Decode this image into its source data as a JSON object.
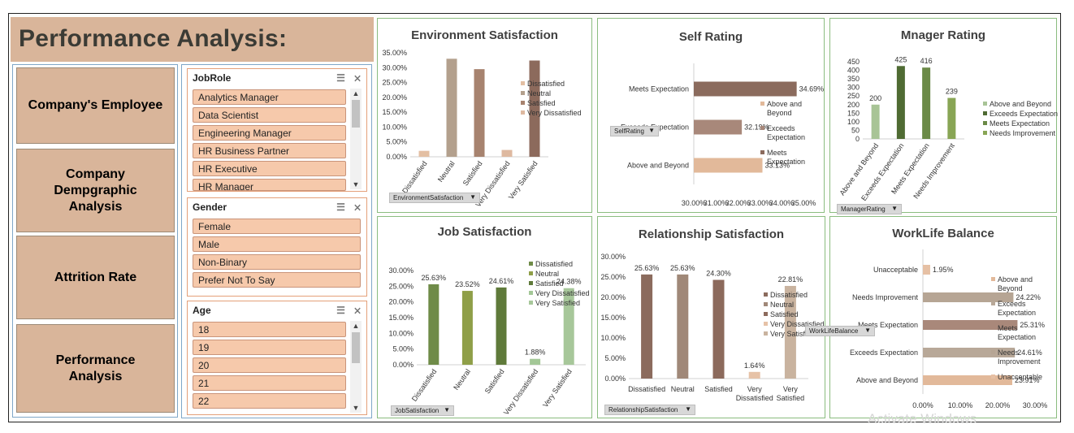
{
  "title": "Performance Analysis:",
  "nav": [
    {
      "label": "Company's Employee"
    },
    {
      "label": "Company Dempgraphic Analysis"
    },
    {
      "label": "Attrition Rate"
    },
    {
      "label": "Performance Analysis"
    }
  ],
  "slicers": {
    "jobrole": {
      "header": "JobRole",
      "items": [
        "Analytics Manager",
        "Data Scientist",
        "Engineering Manager",
        "HR Business Partner",
        "HR Executive",
        "HR Manager"
      ]
    },
    "gender": {
      "header": "Gender",
      "items": [
        "Female",
        "Male",
        "Non-Binary",
        "Prefer Not To Say"
      ]
    },
    "age": {
      "header": "Age",
      "items": [
        "18",
        "19",
        "20",
        "21",
        "22"
      ]
    }
  },
  "icons": {
    "multiselect": "multi-select-icon",
    "clear": "clear-filter-icon",
    "dropdown": "dropdown-arrow-icon"
  },
  "colors": {
    "accent": "#d9b59a",
    "slicer_item": "#f6c9ab",
    "card_border": "#8bbd80"
  },
  "watermark": "Activate Windows",
  "chart_data": [
    {
      "id": "env",
      "type": "bar",
      "title": "Environment Satisfaction",
      "field_button": "EnvironmentSatisfaction",
      "categories": [
        "Dissatisfied",
        "Neutral",
        "Satisfied",
        "Very Dissatisfied",
        "Very Satisfied"
      ],
      "values": [
        2.0,
        33.0,
        29.5,
        2.3,
        32.4
      ],
      "colors": [
        "#e3bfa3",
        "#b3a08d",
        "#a7836f",
        "#deb9a0",
        "#8c6a5c"
      ],
      "yticks": [
        "0.00%",
        "5.00%",
        "10.00%",
        "15.00%",
        "20.00%",
        "25.00%",
        "30.00%",
        "35.00%"
      ],
      "ylim": [
        0,
        35
      ],
      "legend": [
        "Dissatisfied",
        "Neutral",
        "Satisfied",
        "Very Dissatisfied"
      ],
      "legend_colors": [
        "#e3bfa3",
        "#b3a08d",
        "#a7836f",
        "#deb9a0"
      ]
    },
    {
      "id": "self",
      "type": "bar",
      "orientation": "horizontal",
      "title": "Self Rating",
      "field_button": "SelfRating",
      "categories": [
        "Meets Expectation",
        "Exceeds Expectation",
        "Above and Beyond"
      ],
      "values": [
        34.69,
        32.19,
        33.13
      ],
      "labels": [
        "34.69%",
        "32.19%",
        "33.13%"
      ],
      "colors": [
        "#8b6b5d",
        "#a8887a",
        "#e2b99a"
      ],
      "xticks": [
        "30.00%",
        "31.00%",
        "32.00%",
        "33.00%",
        "34.00%",
        "35.00%"
      ],
      "xlim": [
        30,
        35
      ],
      "legend": [
        "Above and Beyond",
        "Exceeds Expectation",
        "Meets Expectation"
      ],
      "legend_colors": [
        "#e2b99a",
        "#a8887a",
        "#8b6b5d"
      ]
    },
    {
      "id": "mgr",
      "type": "bar",
      "title": "Mnager Rating",
      "field_button": "ManagerRating",
      "categories": [
        "Above and Beyond",
        "Exceeds Expectation",
        "Meets Expectation",
        "Needs Improvement"
      ],
      "values": [
        200,
        425,
        416,
        239
      ],
      "labels": [
        "200",
        "425",
        "416",
        "239"
      ],
      "colors": [
        "#a8c496",
        "#4f6b33",
        "#6b8a47",
        "#88a555"
      ],
      "yticks": [
        "0",
        "50",
        "100",
        "150",
        "200",
        "250",
        "300",
        "350",
        "400",
        "450"
      ],
      "ylim": [
        0,
        450
      ],
      "legend": [
        "Above and Beyond",
        "Exceeds Expectation",
        "Meets Expectation",
        "Needs Improvement"
      ],
      "legend_colors": [
        "#a8c496",
        "#4f6b33",
        "#6b8a47",
        "#88a555"
      ]
    },
    {
      "id": "job",
      "type": "bar",
      "title": "Job Satisfaction",
      "field_button": "JobSatisfaction",
      "categories": [
        "Dissatisfied",
        "Neutral",
        "Satisfied",
        "Very Dissatisfied",
        "Very Satisfied"
      ],
      "values": [
        25.63,
        23.52,
        24.61,
        1.88,
        24.38
      ],
      "labels": [
        "25.63%",
        "23.52%",
        "24.61%",
        "1.88%",
        "24.38%"
      ],
      "colors": [
        "#6f8b48",
        "#8f9f48",
        "#5f7a3a",
        "#a3c796",
        "#a7c79a"
      ],
      "yticks": [
        "0.00%",
        "5.00%",
        "10.00%",
        "15.00%",
        "20.00%",
        "25.00%",
        "30.00%"
      ],
      "ylim": [
        0,
        30
      ],
      "legend": [
        "Dissatisfied",
        "Neutral",
        "Satisfied",
        "Very Dissatisfied",
        "Very Satisfied"
      ],
      "legend_colors": [
        "#6f8b48",
        "#8f9f48",
        "#5f7a3a",
        "#a3c796",
        "#a7c79a"
      ]
    },
    {
      "id": "rel",
      "type": "bar",
      "title": "Relationship Satisfaction",
      "field_button": "RelationshipSatisfaction",
      "categories": [
        "Dissatisfied",
        "Neutral",
        "Satisfied",
        "Very Dissatisfied",
        "Very Satisfied"
      ],
      "xlabels": [
        [
          "Dissatisfied"
        ],
        [
          "Neutral"
        ],
        [
          "Satisfied"
        ],
        [
          "Very",
          "Dissatisfied"
        ],
        [
          "Very",
          "Satisfied"
        ]
      ],
      "values": [
        25.63,
        25.63,
        24.3,
        1.64,
        22.81
      ],
      "labels": [
        "25.63%",
        "25.63%",
        "24.30%",
        "1.64%",
        "22.81%"
      ],
      "colors": [
        "#8b6b5d",
        "#a08878",
        "#8c6a5c",
        "#e6c2a7",
        "#c9b39f"
      ],
      "yticks": [
        "0.00%",
        "5.00%",
        "10.00%",
        "15.00%",
        "20.00%",
        "25.00%",
        "30.00%"
      ],
      "ylim": [
        0,
        30
      ],
      "legend": [
        "Dissatisfied",
        "Neutral",
        "Satisfied",
        "Very Dissatisfied",
        "Very Satisfied"
      ],
      "legend_colors": [
        "#8b6b5d",
        "#a08878",
        "#8c6a5c",
        "#e6c2a7",
        "#c9b39f"
      ]
    },
    {
      "id": "wlb",
      "type": "bar",
      "orientation": "horizontal",
      "title": "WorkLife Balance",
      "field_button": "WorkLifeBalance",
      "categories": [
        "Unacceptable",
        "Needs Improvement",
        "Meets Expectation",
        "Exceeds Expectation",
        "Above and Beyond"
      ],
      "values": [
        1.95,
        24.22,
        25.31,
        24.61,
        23.91
      ],
      "labels": [
        "1.95%",
        "24.22%",
        "25.31%",
        "24.61%",
        "23.91%"
      ],
      "colors": [
        "#e6c0a4",
        "#b6a594",
        "#a9887a",
        "#b8a898",
        "#e2b99a"
      ],
      "xticks": [
        "0.00%",
        "10.00%",
        "20.00%",
        "30.00%"
      ],
      "xlim": [
        0,
        30
      ],
      "legend": [
        "Above and Beyond",
        "Exceeds Expectation",
        "Meets Expectation",
        "Needs Improvement",
        "Unacceptable"
      ],
      "legend_colors": [
        "#e2b99a",
        "#b8a898",
        "#a9887a",
        "#b6a594",
        "#e6c0a4"
      ]
    }
  ]
}
